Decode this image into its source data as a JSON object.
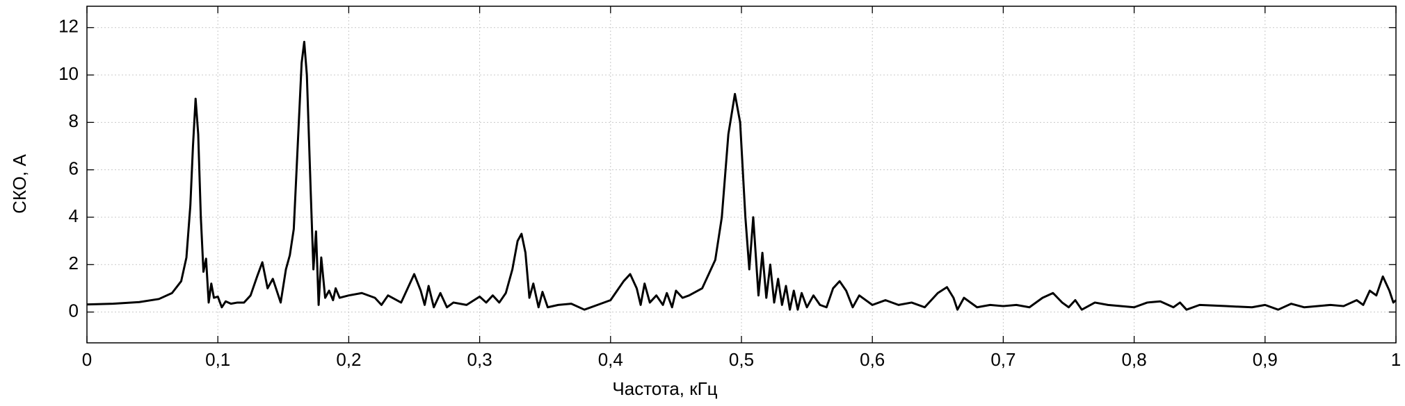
{
  "chart_data": {
    "type": "line",
    "x_label": "Частота, кГц",
    "y_label": "СКО, А",
    "xlim": [
      0,
      1
    ],
    "ylim": [
      -1.3,
      12.9
    ],
    "xticks": [
      0,
      {
        "value": 0.1,
        "label": "0,1"
      },
      {
        "value": 0.2,
        "label": "0,2"
      },
      {
        "value": 0.3,
        "label": "0,3"
      },
      {
        "value": 0.4,
        "label": "0,4"
      },
      {
        "value": 0.5,
        "label": "0,5"
      },
      {
        "value": 0.6,
        "label": "0,6"
      },
      {
        "value": 0.7,
        "label": "0,7"
      },
      {
        "value": 0.8,
        "label": "0,8"
      },
      {
        "value": 0.9,
        "label": "0,9"
      },
      1
    ],
    "yticks": [
      0,
      2,
      4,
      6,
      8,
      10,
      12
    ],
    "grid": true,
    "series": [
      {
        "color": "#000000",
        "x": [
          0,
          0.02,
          0.04,
          0.055,
          0.065,
          0.072,
          0.076,
          0.079,
          0.081,
          0.083,
          0.085,
          0.087,
          0.089,
          0.091,
          0.093,
          0.095,
          0.097,
          0.1,
          0.103,
          0.106,
          0.11,
          0.115,
          0.12,
          0.125,
          0.13,
          0.134,
          0.138,
          0.142,
          0.148,
          0.152,
          0.155,
          0.158,
          0.161,
          0.164,
          0.166,
          0.168,
          0.171,
          0.173,
          0.175,
          0.177,
          0.179,
          0.182,
          0.185,
          0.188,
          0.19,
          0.193,
          0.2,
          0.21,
          0.22,
          0.225,
          0.23,
          0.24,
          0.25,
          0.255,
          0.258,
          0.261,
          0.265,
          0.27,
          0.275,
          0.28,
          0.29,
          0.3,
          0.305,
          0.31,
          0.315,
          0.32,
          0.325,
          0.329,
          0.332,
          0.335,
          0.338,
          0.341,
          0.345,
          0.348,
          0.352,
          0.36,
          0.37,
          0.38,
          0.39,
          0.4,
          0.41,
          0.415,
          0.42,
          0.423,
          0.426,
          0.43,
          0.435,
          0.44,
          0.443,
          0.447,
          0.45,
          0.455,
          0.46,
          0.47,
          0.475,
          0.48,
          0.485,
          0.49,
          0.495,
          0.499,
          0.503,
          0.506,
          0.509,
          0.513,
          0.516,
          0.519,
          0.522,
          0.525,
          0.528,
          0.531,
          0.534,
          0.537,
          0.54,
          0.543,
          0.546,
          0.55,
          0.555,
          0.56,
          0.565,
          0.57,
          0.575,
          0.58,
          0.585,
          0.59,
          0.6,
          0.61,
          0.62,
          0.63,
          0.64,
          0.65,
          0.657,
          0.662,
          0.665,
          0.67,
          0.68,
          0.69,
          0.7,
          0.71,
          0.72,
          0.73,
          0.738,
          0.745,
          0.75,
          0.755,
          0.76,
          0.77,
          0.78,
          0.8,
          0.81,
          0.82,
          0.83,
          0.835,
          0.84,
          0.85,
          0.87,
          0.89,
          0.9,
          0.91,
          0.92,
          0.93,
          0.95,
          0.96,
          0.97,
          0.975,
          0.98,
          0.985,
          0.99,
          0.995,
          0.998,
          1
        ],
        "values": [
          0.32,
          0.35,
          0.42,
          0.55,
          0.8,
          1.3,
          2.3,
          4.5,
          7.0,
          9.0,
          7.5,
          4.0,
          1.7,
          2.25,
          0.4,
          1.2,
          0.6,
          0.65,
          0.2,
          0.45,
          0.35,
          0.4,
          0.4,
          0.7,
          1.5,
          2.1,
          1.0,
          1.4,
          0.4,
          1.8,
          2.4,
          3.5,
          7.0,
          10.5,
          11.4,
          10.0,
          5.0,
          1.8,
          3.4,
          0.3,
          2.3,
          0.6,
          0.9,
          0.5,
          1.0,
          0.6,
          0.7,
          0.8,
          0.6,
          0.3,
          0.7,
          0.4,
          1.6,
          0.9,
          0.3,
          1.1,
          0.2,
          0.8,
          0.2,
          0.4,
          0.3,
          0.65,
          0.4,
          0.7,
          0.4,
          0.8,
          1.8,
          3.0,
          3.3,
          2.5,
          0.6,
          1.2,
          0.2,
          0.85,
          0.2,
          0.3,
          0.35,
          0.1,
          0.3,
          0.5,
          1.3,
          1.6,
          1.0,
          0.3,
          1.2,
          0.4,
          0.7,
          0.3,
          0.8,
          0.2,
          0.9,
          0.6,
          0.7,
          1.0,
          1.6,
          2.2,
          4.0,
          7.5,
          9.2,
          8.0,
          4.0,
          1.8,
          4.0,
          0.7,
          2.5,
          0.6,
          2.0,
          0.4,
          1.4,
          0.3,
          1.1,
          0.1,
          0.9,
          0.1,
          0.8,
          0.2,
          0.7,
          0.3,
          0.2,
          1.0,
          1.3,
          0.9,
          0.2,
          0.7,
          0.3,
          0.5,
          0.3,
          0.4,
          0.2,
          0.8,
          1.05,
          0.6,
          0.1,
          0.6,
          0.2,
          0.3,
          0.25,
          0.3,
          0.2,
          0.6,
          0.8,
          0.4,
          0.2,
          0.5,
          0.1,
          0.4,
          0.3,
          0.2,
          0.4,
          0.45,
          0.2,
          0.4,
          0.1,
          0.3,
          0.25,
          0.2,
          0.3,
          0.1,
          0.35,
          0.2,
          0.3,
          0.25,
          0.5,
          0.3,
          0.9,
          0.7,
          1.5,
          0.9,
          0.4,
          0.5
        ]
      }
    ]
  }
}
